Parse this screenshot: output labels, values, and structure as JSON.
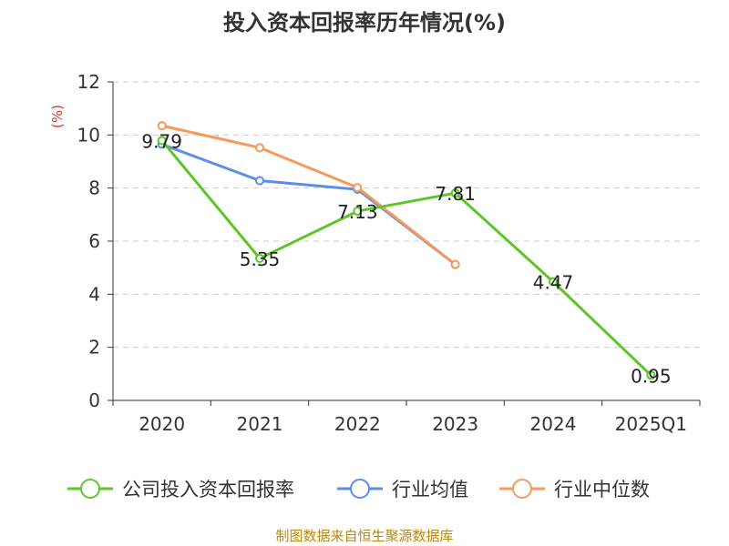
{
  "chart_data": {
    "type": "line",
    "title": "投入资本回报率历年情况(%)",
    "ylabel": "(%)",
    "xlabel": "",
    "categories": [
      "2020",
      "2021",
      "2022",
      "2023",
      "2024",
      "2025Q1"
    ],
    "ylim": [
      0,
      12
    ],
    "yticks": [
      0,
      2,
      4,
      6,
      8,
      10,
      12
    ],
    "grid": true,
    "legend_position": "bottom",
    "series": [
      {
        "name": "公司投入资本回报率",
        "color": "#5cc628",
        "values": [
          9.79,
          5.35,
          7.13,
          7.81,
          4.47,
          0.95
        ],
        "labels": [
          "9.79",
          "5.35",
          "7.13",
          "7.81",
          "4.47",
          "0.95"
        ]
      },
      {
        "name": "行业均值",
        "color": "#5b8ee6",
        "values": [
          9.65,
          8.28,
          7.95,
          5.12,
          null,
          null
        ]
      },
      {
        "name": "行业中位数",
        "color": "#f59a5c",
        "values": [
          10.35,
          9.52,
          8.02,
          5.12,
          null,
          null
        ]
      }
    ]
  },
  "source": "制图数据来自恒生聚源数据库"
}
